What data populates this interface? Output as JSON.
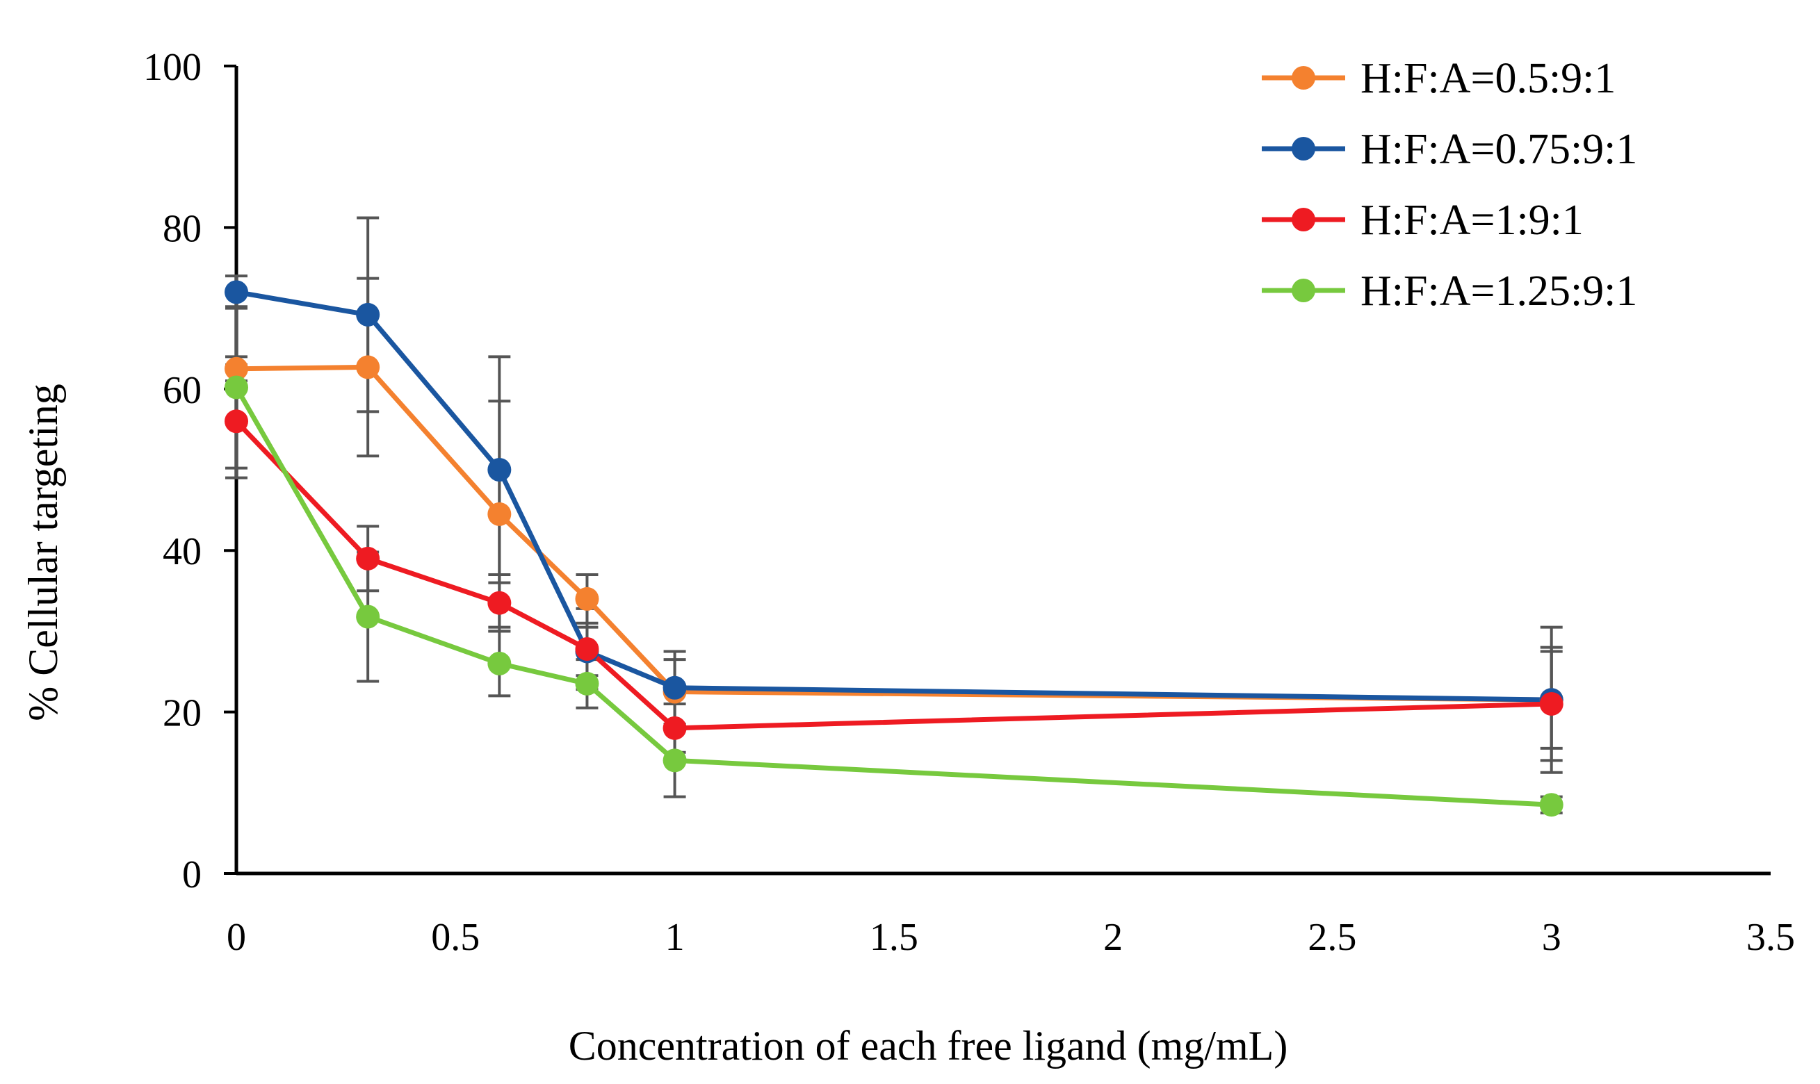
{
  "chart_data": {
    "type": "line",
    "title": "",
    "xlabel": "Concentration of each free ligand (mg/mL)",
    "ylabel": "% Cellular targeting",
    "xlim": [
      0,
      3.5
    ],
    "ylim": [
      0,
      100
    ],
    "xticks": [
      0,
      0.5,
      1,
      1.5,
      2,
      2.5,
      3,
      3.5
    ],
    "xtick_labels": [
      "0",
      "0.5",
      "1",
      "1.5",
      "2",
      "2.5",
      "3",
      "3.5"
    ],
    "yticks": [
      0,
      20,
      40,
      60,
      80,
      100
    ],
    "ytick_labels": [
      "0",
      "20",
      "40",
      "60",
      "80",
      "100"
    ],
    "grid": false,
    "legend_position": "top-right",
    "series": [
      {
        "name": "H:F:A=0.5:9:1",
        "color": "#F4812F",
        "x": [
          0,
          0.3,
          0.6,
          0.8,
          1,
          3
        ],
        "y": [
          62.5,
          62.7,
          44.5,
          34,
          22.5,
          21.5
        ],
        "err": [
          1.5,
          11,
          14,
          3,
          4,
          9
        ]
      },
      {
        "name": "H:F:A=0.75:9:1",
        "color": "#1A56A0",
        "x": [
          0,
          0.3,
          0.6,
          0.8,
          1,
          3
        ],
        "y": [
          72,
          69.2,
          50,
          27.5,
          23,
          21.5
        ],
        "err": [
          2,
          12,
          14,
          3,
          4.5,
          6
        ]
      },
      {
        "name": "H:F:A=1:9:1",
        "color": "#EE1B22",
        "x": [
          0,
          0.3,
          0.6,
          0.8,
          1,
          3
        ],
        "y": [
          56,
          39,
          33.5,
          27.8,
          18,
          21
        ],
        "err": [
          7,
          4,
          3.5,
          5,
          3,
          7
        ]
      },
      {
        "name": "H:F:A=1.25:9:1",
        "color": "#77C93E",
        "x": [
          0,
          0.3,
          0.6,
          0.8,
          1,
          3
        ],
        "y": [
          60.2,
          31.8,
          26,
          23.5,
          14,
          8.5
        ],
        "err": [
          10,
          8,
          4,
          3,
          4.5,
          1
        ]
      }
    ]
  }
}
